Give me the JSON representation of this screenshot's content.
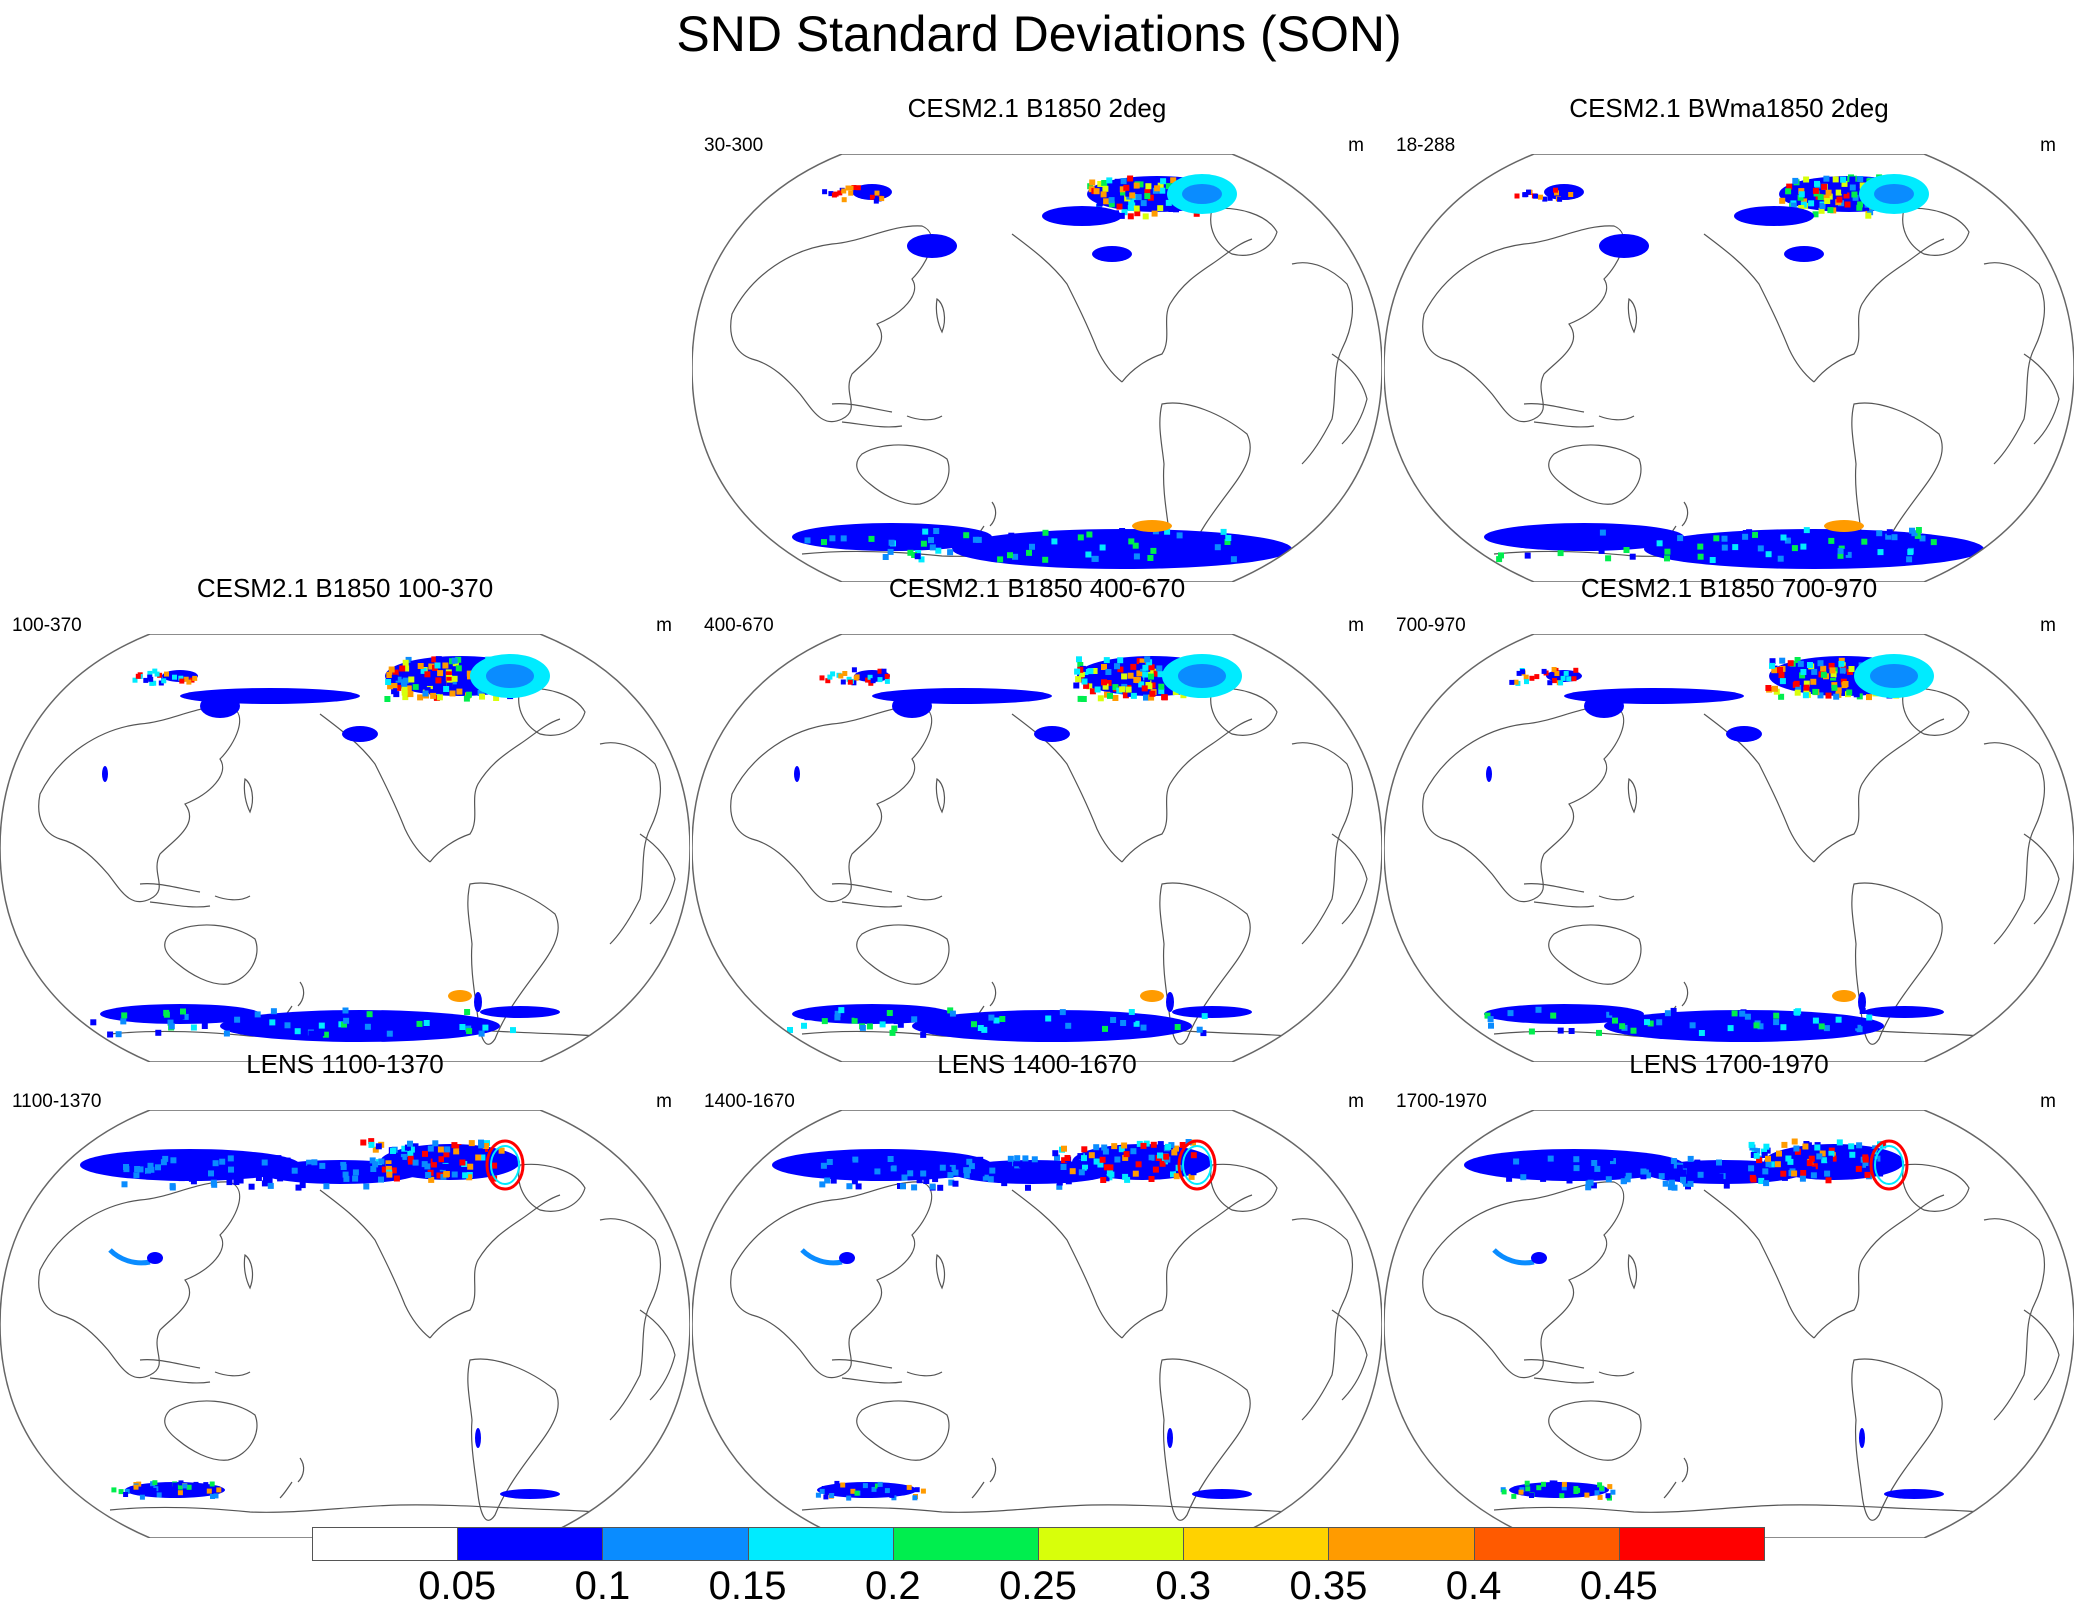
{
  "title": "SND Standard Deviations (SON)",
  "panels": [
    {
      "title": "CESM2.1 B1850 2deg",
      "left": "30-300",
      "right": "m",
      "style": "a"
    },
    {
      "title": "CESM2.1 BWma1850 2deg",
      "left": "18-288",
      "right": "m",
      "style": "a"
    },
    {
      "title": "CESM2.1 B1850 100-370",
      "left": "100-370",
      "right": "m",
      "style": "b"
    },
    {
      "title": "CESM2.1 B1850 400-670",
      "left": "400-670",
      "right": "m",
      "style": "b"
    },
    {
      "title": "CESM2.1 B1850 700-970",
      "left": "700-970",
      "right": "m",
      "style": "b"
    },
    {
      "title": "LENS 1100-1370",
      "left": "1100-1370",
      "right": "m",
      "style": "c"
    },
    {
      "title": "LENS 1400-1670",
      "left": "1400-1670",
      "right": "m",
      "style": "c"
    },
    {
      "title": "LENS 1700-1970",
      "left": "1700-1970",
      "right": "m",
      "style": "c"
    }
  ],
  "colorbar": {
    "labels": [
      "0.05",
      "0.1",
      "0.15",
      "0.2",
      "0.25",
      "0.3",
      "0.35",
      "0.4",
      "0.45"
    ],
    "colors": [
      "#ffffff",
      "#0000ff",
      "#0a8cff",
      "#00ebff",
      "#00ee4e",
      "#d8ff0a",
      "#ffd200",
      "#ff9b00",
      "#ff5a00",
      "#ff0000"
    ]
  },
  "colors": {
    "coast": "#555555",
    "border": "#666666",
    "low": "#0000ff",
    "mid": "#0a8cff",
    "cyan": "#00ebff",
    "green": "#00ee4e",
    "yellow": "#d8ff0a",
    "orange": "#ff9b00",
    "red": "#ff0000"
  }
}
